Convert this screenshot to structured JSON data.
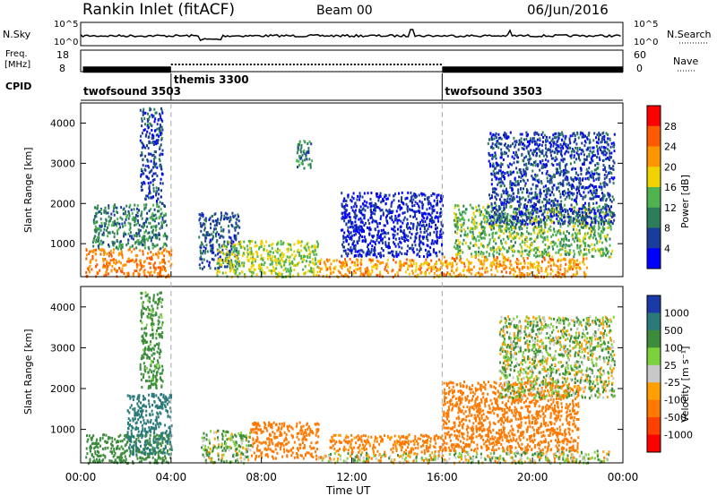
{
  "header": {
    "station": "Rankin Inlet (fitACF)",
    "beam": "Beam 00",
    "date": "06/Jun/2016"
  },
  "panels": {
    "nsky_label": "N.Sky",
    "nsearch_label": "N.Search",
    "nsky_ticks": [
      "10^5",
      "10^0"
    ],
    "nsearch_ticks": [
      "10^5",
      "10^0"
    ],
    "freq_label_top": "Freq.",
    "freq_label_bottom": "[MHz]",
    "freq_ticks": [
      "18",
      "8"
    ],
    "nave_label": "Nave",
    "nave_ticks": [
      "60",
      "0"
    ],
    "cpid_label": "CPID",
    "cpid_segments": [
      {
        "label": "twofsound 3503",
        "start": 0,
        "end": 4
      },
      {
        "label": "themis 3300",
        "start": 4,
        "end": 16
      },
      {
        "label": "twofsound 3503",
        "start": 16,
        "end": 24
      }
    ]
  },
  "colorbars": {
    "power": {
      "title": "Power [dB]",
      "labels": [
        "28",
        "24",
        "20",
        "16",
        "12",
        "8",
        "4"
      ],
      "colors": [
        "#ff0000",
        "#ff5a00",
        "#ff9600",
        "#f0d200",
        "#4fb44f",
        "#2e7d5a",
        "#1a3c9b",
        "#0000ff"
      ]
    },
    "velocity": {
      "title": "Velocity [m s⁻¹]",
      "labels": [
        "1000",
        "500",
        "100",
        "25",
        "-25",
        "-100",
        "-500",
        "-1000"
      ],
      "colors": [
        "#1a3aa8",
        "#2a7a7a",
        "#3c8c3c",
        "#7cd23c",
        "#c8c8c8",
        "#ffa000",
        "#ff7800",
        "#ff4000",
        "#ff0000"
      ]
    }
  },
  "axes": {
    "ylabel": "Slant Range [km]",
    "yticks": [
      "4000",
      "3000",
      "2000",
      "1000"
    ],
    "xticks": [
      "00:00",
      "04:00",
      "08:00",
      "12:00",
      "16:00",
      "20:00",
      "00:00"
    ],
    "xlabel": "Time UT"
  },
  "chart_data": {
    "type": "heatmap",
    "x_range_hours": [
      0,
      24
    ],
    "y_range_km": [
      180,
      4500
    ],
    "mode_change_times_hours": [
      4,
      16
    ],
    "frequency_mhz": {
      "twofsound": 10.5,
      "themis": 10.5
    },
    "power_scale_db": [
      0,
      30
    ],
    "velocity_scale_ms": [
      -1000,
      1000
    ],
    "power_regions": [
      {
        "t0": 0.2,
        "t1": 4.0,
        "r0": 200,
        "r1": 900,
        "level": 24
      },
      {
        "t0": 0.5,
        "t1": 3.8,
        "r0": 900,
        "r1": 2000,
        "level": 10
      },
      {
        "t0": 2.6,
        "t1": 3.6,
        "r0": 2000,
        "r1": 4400,
        "level": 6
      },
      {
        "t0": 5.2,
        "t1": 7.0,
        "r0": 400,
        "r1": 1800,
        "level": 7
      },
      {
        "t0": 6.0,
        "t1": 10.5,
        "r0": 200,
        "r1": 1100,
        "level": 16
      },
      {
        "t0": 9.5,
        "t1": 10.2,
        "r0": 2900,
        "r1": 3600,
        "level": 10
      },
      {
        "t0": 10.5,
        "t1": 16.0,
        "r0": 200,
        "r1": 650,
        "level": 22
      },
      {
        "t0": 11.5,
        "t1": 16.0,
        "r0": 700,
        "r1": 2300,
        "level": 4
      },
      {
        "t0": 16.0,
        "t1": 22.4,
        "r0": 200,
        "r1": 700,
        "level": 22
      },
      {
        "t0": 16.5,
        "t1": 23.5,
        "r0": 700,
        "r1": 2000,
        "level": 14
      },
      {
        "t0": 18.0,
        "t1": 23.6,
        "r0": 1500,
        "r1": 3800,
        "level": 6
      }
    ],
    "velocity_regions": [
      {
        "t0": 0.2,
        "t1": 4.0,
        "r0": 200,
        "r1": 900,
        "v": 300
      },
      {
        "t0": 2.0,
        "t1": 4.0,
        "r0": 400,
        "r1": 1900,
        "v": 800
      },
      {
        "t0": 2.6,
        "t1": 3.6,
        "r0": 2000,
        "r1": 4400,
        "v": 200
      },
      {
        "t0": 5.3,
        "t1": 7.5,
        "r0": 200,
        "r1": 1000,
        "v": 80
      },
      {
        "t0": 7.5,
        "t1": 10.5,
        "r0": 300,
        "r1": 1200,
        "v": -300
      },
      {
        "t0": 10.5,
        "t1": 16.0,
        "r0": 200,
        "r1": 450,
        "v": 10
      },
      {
        "t0": 11.0,
        "t1": 16.0,
        "r0": 450,
        "r1": 900,
        "v": -200
      },
      {
        "t0": 16.0,
        "t1": 23.5,
        "r0": 200,
        "r1": 500,
        "v": 40
      },
      {
        "t0": 16.0,
        "t1": 22.0,
        "r0": 500,
        "r1": 2200,
        "v": -250
      },
      {
        "t0": 18.5,
        "t1": 23.6,
        "r0": 1800,
        "r1": 3800,
        "v": 60
      }
    ]
  }
}
